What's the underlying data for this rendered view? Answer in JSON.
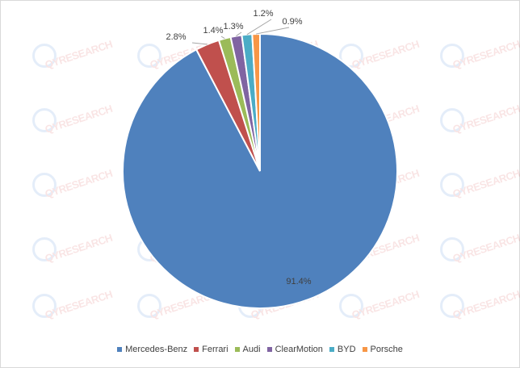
{
  "chart_data": {
    "type": "pie",
    "title": "",
    "legend_position": "bottom",
    "categories": [
      "Mercedes-Benz",
      "Ferrari",
      "Audi",
      "ClearMotion",
      "BYD",
      "Porsche"
    ],
    "values": [
      91.4,
      2.8,
      1.4,
      1.3,
      1.2,
      0.9
    ],
    "value_labels": [
      "91.4%",
      "2.8%",
      "1.4%",
      "1.3%",
      "1.2%",
      "0.9%"
    ],
    "colors": [
      "#4f81bd",
      "#c0504d",
      "#9bbb59",
      "#8064a2",
      "#4bacc6",
      "#f79646"
    ]
  },
  "watermark": {
    "text": "QYRESEARCH",
    "icon": "qyresearch-logo"
  }
}
